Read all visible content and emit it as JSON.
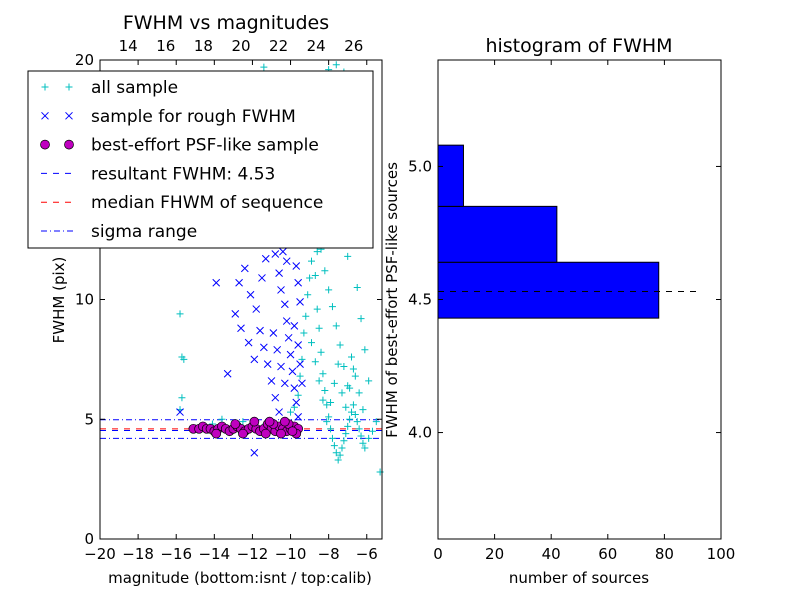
{
  "chart_data": [
    {
      "type": "scatter",
      "title": "FWHM vs magnitudes",
      "xlabel": "magnitude (bottom:isnt / top:calib)",
      "ylabel": "FWHM (pix)",
      "xlim": [
        -20,
        -5.2
      ],
      "ylim": [
        0,
        20
      ],
      "x_ticks": [
        -20,
        -18,
        -16,
        -14,
        -12,
        -10,
        -8,
        -6
      ],
      "x_tick_labels": [
        "−20",
        "−18",
        "−16",
        "−14",
        "−12",
        "−10",
        "−8",
        "−6"
      ],
      "y_ticks": [
        0,
        5,
        10,
        20
      ],
      "y_tick_labels": [
        "0",
        "5",
        "10",
        "20"
      ],
      "top_xlim": [
        12.5,
        27.5
      ],
      "top_x_ticks": [
        14,
        16,
        18,
        20,
        22,
        24,
        26
      ],
      "top_x_tick_labels": [
        "14",
        "16",
        "18",
        "20",
        "22",
        "24",
        "26"
      ],
      "legend_placement": "top-left",
      "grid": false,
      "legend": [
        {
          "label": "all sample",
          "marker": "+",
          "color": "#00bfbf"
        },
        {
          "label": "sample for rough FWHM",
          "marker": "x",
          "color": "#0000ff"
        },
        {
          "label": "best-effort PSF-like sample",
          "marker": "o",
          "color": "#bf00bf"
        },
        {
          "label": "resultant FWHM: 4.53",
          "marker": "dashed",
          "color": "#0000ff"
        },
        {
          "label": "median FHWM of sequence",
          "marker": "dashed",
          "color": "#ff0000"
        },
        {
          "label": "sigma range",
          "marker": "dashdot",
          "color": "#0000ff"
        }
      ],
      "series": [
        {
          "name": "all sample",
          "points": [
            [
              -15.8,
              9.4
            ],
            [
              -15.7,
              7.6
            ],
            [
              -15.6,
              7.5
            ],
            [
              -15.7,
              5.9
            ],
            [
              -15.8,
              5.4
            ],
            [
              -13.6,
              5.0
            ],
            [
              -14.1,
              4.8
            ],
            [
              -12.5,
              4.9
            ],
            [
              -11.8,
              4.7
            ],
            [
              -11.3,
              4.8
            ],
            [
              -10.8,
              4.5
            ],
            [
              -10.6,
              4.7
            ],
            [
              -10.2,
              4.9
            ],
            [
              -10.0,
              5.3
            ],
            [
              -9.8,
              5.5
            ],
            [
              -9.6,
              6.0
            ],
            [
              -9.5,
              6.8
            ],
            [
              -9.4,
              7.5
            ],
            [
              -9.3,
              8.6
            ],
            [
              -9.2,
              9.3
            ],
            [
              -9.1,
              10.2
            ],
            [
              -9.0,
              10.9
            ],
            [
              -8.9,
              11.6
            ],
            [
              -8.8,
              12.4
            ],
            [
              -8.7,
              11.0
            ],
            [
              -8.6,
              9.6
            ],
            [
              -8.5,
              8.8
            ],
            [
              -8.4,
              7.8
            ],
            [
              -8.3,
              6.9
            ],
            [
              -8.2,
              6.2
            ],
            [
              -8.1,
              5.6
            ],
            [
              -8.0,
              5.1
            ],
            [
              -7.9,
              4.6
            ],
            [
              -7.8,
              4.2
            ],
            [
              -7.7,
              3.9
            ],
            [
              -7.6,
              3.6
            ],
            [
              -7.5,
              3.3
            ],
            [
              -7.4,
              3.5
            ],
            [
              -7.3,
              3.8
            ],
            [
              -7.2,
              4.1
            ],
            [
              -7.1,
              4.4
            ],
            [
              -7.0,
              4.7
            ],
            [
              -6.9,
              5.0
            ],
            [
              -6.8,
              5.3
            ],
            [
              -6.7,
              5.6
            ],
            [
              -6.6,
              5.2
            ],
            [
              -6.5,
              4.9
            ],
            [
              -6.4,
              4.6
            ],
            [
              -6.3,
              4.3
            ],
            [
              -6.2,
              4.0
            ],
            [
              -6.1,
              3.8
            ],
            [
              -5.9,
              4.2
            ],
            [
              -5.7,
              4.5
            ],
            [
              -5.5,
              4.9
            ],
            [
              -5.3,
              2.8
            ],
            [
              -9.2,
              12.9
            ],
            [
              -9.0,
              13.4
            ],
            [
              -8.8,
              13.0
            ],
            [
              -8.6,
              12.7
            ],
            [
              -8.4,
              12.1
            ],
            [
              -8.2,
              11.2
            ],
            [
              -8.0,
              10.4
            ],
            [
              -7.8,
              9.7
            ],
            [
              -7.6,
              8.9
            ],
            [
              -7.4,
              8.1
            ],
            [
              -7.2,
              7.2
            ],
            [
              -7.0,
              6.4
            ],
            [
              -6.8,
              7.6
            ],
            [
              -6.6,
              6.8
            ],
            [
              -6.4,
              6.1
            ],
            [
              -6.2,
              5.4
            ],
            [
              -8.9,
              8.2
            ],
            [
              -8.7,
              7.4
            ],
            [
              -8.5,
              6.6
            ],
            [
              -8.3,
              5.8
            ],
            [
              -8.1,
              4.9
            ],
            [
              -7.9,
              5.7
            ],
            [
              -7.7,
              6.5
            ],
            [
              -7.5,
              7.3
            ],
            [
              -7.3,
              6.1
            ],
            [
              -7.1,
              5.5
            ],
            [
              -6.9,
              6.3
            ],
            [
              -6.7,
              7.1
            ],
            [
              -8.0,
              19.6
            ],
            [
              -7.6,
              19.8
            ],
            [
              -7.2,
              19.5
            ],
            [
              -8.6,
              12.0
            ],
            [
              -7.0,
              11.8
            ],
            [
              -6.5,
              10.5
            ],
            [
              -6.3,
              9.2
            ],
            [
              -6.1,
              7.9
            ],
            [
              -5.9,
              6.6
            ],
            [
              -11.4,
              19.7
            ]
          ]
        },
        {
          "name": "sample for rough FWHM",
          "points": [
            [
              -15.8,
              5.3
            ],
            [
              -13.3,
              6.9
            ],
            [
              -11.9,
              3.6
            ],
            [
              -12.7,
              10.7
            ],
            [
              -12.4,
              11.3
            ],
            [
              -12.1,
              10.2
            ],
            [
              -11.8,
              9.6
            ],
            [
              -11.5,
              10.9
            ],
            [
              -11.3,
              11.7
            ],
            [
              -11.1,
              12.5
            ],
            [
              -10.9,
              13.3
            ],
            [
              -10.8,
              11.9
            ],
            [
              -10.6,
              11.1
            ],
            [
              -10.5,
              10.4
            ],
            [
              -10.3,
              9.8
            ],
            [
              -10.2,
              9.1
            ],
            [
              -10.1,
              8.4
            ],
            [
              -10.0,
              7.7
            ],
            [
              -9.9,
              7.0
            ],
            [
              -9.8,
              6.3
            ],
            [
              -9.7,
              5.7
            ],
            [
              -9.6,
              5.1
            ],
            [
              -11.6,
              8.7
            ],
            [
              -11.4,
              8.0
            ],
            [
              -11.2,
              7.3
            ],
            [
              -11.0,
              6.6
            ],
            [
              -10.8,
              5.9
            ],
            [
              -10.6,
              5.3
            ],
            [
              -12.9,
              9.4
            ],
            [
              -12.6,
              8.8
            ],
            [
              -10.4,
              12.0
            ],
            [
              -10.2,
              11.6
            ],
            [
              -9.9,
              12.3
            ],
            [
              -9.7,
              11.4
            ],
            [
              -9.6,
              10.7
            ],
            [
              -9.5,
              9.9
            ],
            [
              -9.8,
              8.9
            ],
            [
              -9.6,
              8.1
            ],
            [
              -9.5,
              7.3
            ],
            [
              -9.4,
              6.5
            ],
            [
              -12.2,
              8.2
            ],
            [
              -11.9,
              7.5
            ],
            [
              -10.9,
              8.6
            ],
            [
              -10.7,
              7.9
            ],
            [
              -10.5,
              7.2
            ],
            [
              -10.3,
              6.5
            ],
            [
              -13.9,
              10.7
            ]
          ]
        },
        {
          "name": "best-effort PSF-like sample",
          "points": [
            [
              -15.1,
              4.6
            ],
            [
              -14.8,
              4.6
            ],
            [
              -14.6,
              4.7
            ],
            [
              -14.4,
              4.6
            ],
            [
              -14.2,
              4.6
            ],
            [
              -14.0,
              4.5
            ],
            [
              -13.8,
              4.6
            ],
            [
              -13.6,
              4.7
            ],
            [
              -13.4,
              4.6
            ],
            [
              -13.2,
              4.5
            ],
            [
              -13.0,
              4.6
            ],
            [
              -12.8,
              4.7
            ],
            [
              -12.6,
              4.6
            ],
            [
              -12.4,
              4.5
            ],
            [
              -12.2,
              4.6
            ],
            [
              -12.0,
              4.7
            ],
            [
              -11.8,
              4.6
            ],
            [
              -11.6,
              4.5
            ],
            [
              -11.4,
              4.6
            ],
            [
              -11.2,
              4.8
            ],
            [
              -11.0,
              4.6
            ],
            [
              -10.8,
              4.5
            ],
            [
              -10.6,
              4.7
            ],
            [
              -10.4,
              4.6
            ],
            [
              -10.2,
              4.5
            ],
            [
              -10.0,
              4.6
            ],
            [
              -9.8,
              4.7
            ],
            [
              -9.6,
              4.6
            ],
            [
              -11.9,
              4.9
            ],
            [
              -11.3,
              4.4
            ],
            [
              -10.9,
              4.8
            ],
            [
              -10.5,
              4.4
            ],
            [
              -10.1,
              4.8
            ],
            [
              -9.7,
              4.4
            ],
            [
              -12.9,
              4.8
            ],
            [
              -13.9,
              4.4
            ],
            [
              -12.5,
              4.4
            ],
            [
              -11.1,
              4.9
            ],
            [
              -10.3,
              4.9
            ],
            [
              -9.9,
              4.5
            ]
          ]
        }
      ],
      "hlines": [
        {
          "name": "resultant FWHM: 4.53",
          "y": 4.53,
          "style": "dashed",
          "color": "#0000ff"
        },
        {
          "name": "median FHWM of sequence",
          "y": 4.6,
          "style": "dashed",
          "color": "#ff0000"
        },
        {
          "name": "sigma range",
          "y": 4.98,
          "style": "dashdot",
          "color": "#0000ff"
        },
        {
          "name": "sigma range",
          "y": 4.2,
          "style": "dashdot",
          "color": "#0000ff"
        }
      ]
    },
    {
      "type": "bar",
      "orientation": "horizontal",
      "title": "histogram of FWHM",
      "xlabel": "number of sources",
      "ylabel": "FWHM of best-effort PSF-like sources",
      "xlim": [
        0,
        100
      ],
      "ylim": [
        3.6,
        5.4
      ],
      "x_ticks": [
        0,
        20,
        40,
        60,
        80,
        100
      ],
      "x_tick_labels": [
        "0",
        "20",
        "40",
        "60",
        "80",
        "100"
      ],
      "y_ticks": [
        4.0,
        4.5,
        5.0
      ],
      "y_tick_labels": [
        "4.0",
        "4.5",
        "5.0"
      ],
      "color": "#0000ff",
      "bins": [
        {
          "y0": 4.43,
          "y1": 4.64,
          "count": 78
        },
        {
          "y0": 4.64,
          "y1": 4.85,
          "count": 42
        },
        {
          "y0": 4.85,
          "y1": 5.08,
          "count": 9
        }
      ],
      "median_line": {
        "y": 4.53,
        "style": "dashed",
        "color": "#000000"
      },
      "grid": false
    }
  ]
}
